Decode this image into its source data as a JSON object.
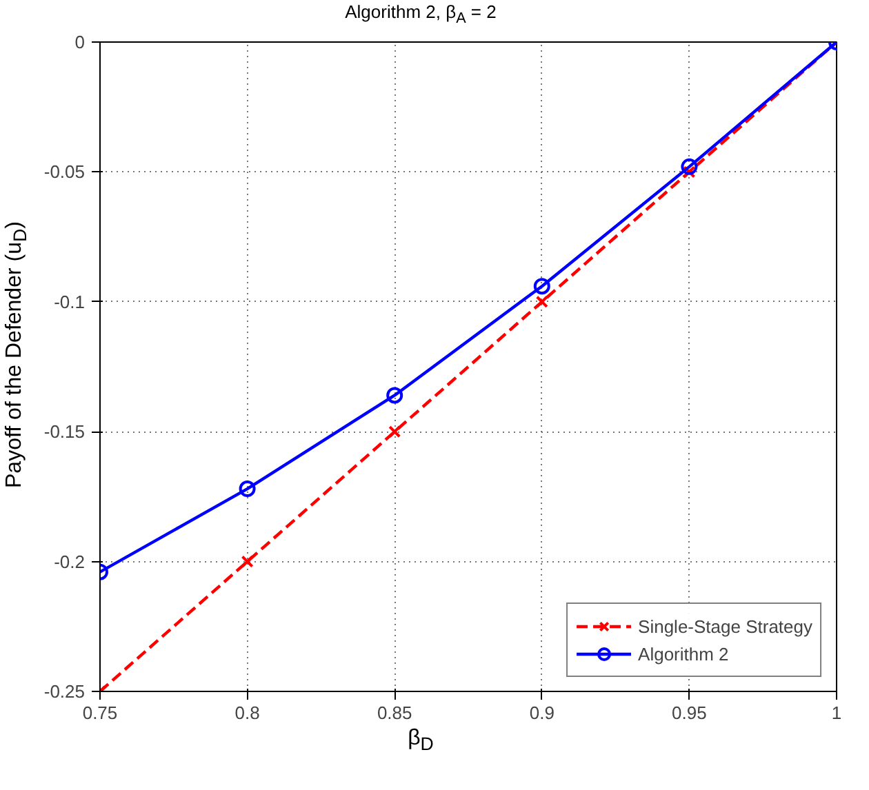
{
  "chart_data": {
    "type": "line",
    "title": "Algorithm 2, β$_{A}$ = 2",
    "xlabel": "β$_{D}$",
    "ylabel": "Payoff of the Defender (u$_{D}$)",
    "x": [
      0.75,
      0.8,
      0.85,
      0.9,
      0.95,
      1
    ],
    "series": [
      {
        "name": "Single-Stage Strategy",
        "color": "#ff0000",
        "values": [
          -0.25,
          -0.2,
          -0.15,
          -0.1,
          -0.05,
          0
        ],
        "marker": "cross",
        "line_style": "dashed"
      },
      {
        "name": "Algorithm 2",
        "color": "#0000ff",
        "values": [
          -0.204,
          -0.172,
          -0.136,
          -0.094,
          -0.048,
          0
        ],
        "marker": "circle",
        "line_style": "solid"
      }
    ],
    "xlim": [
      0.75,
      1
    ],
    "ylim": [
      -0.25,
      0
    ],
    "xticks": [
      0.75,
      0.8,
      0.85,
      0.9,
      0.95,
      1
    ],
    "yticks": [
      -0.25,
      -0.2,
      -0.15,
      -0.1,
      -0.05,
      0
    ],
    "grid": true,
    "legend": "bottom right"
  }
}
